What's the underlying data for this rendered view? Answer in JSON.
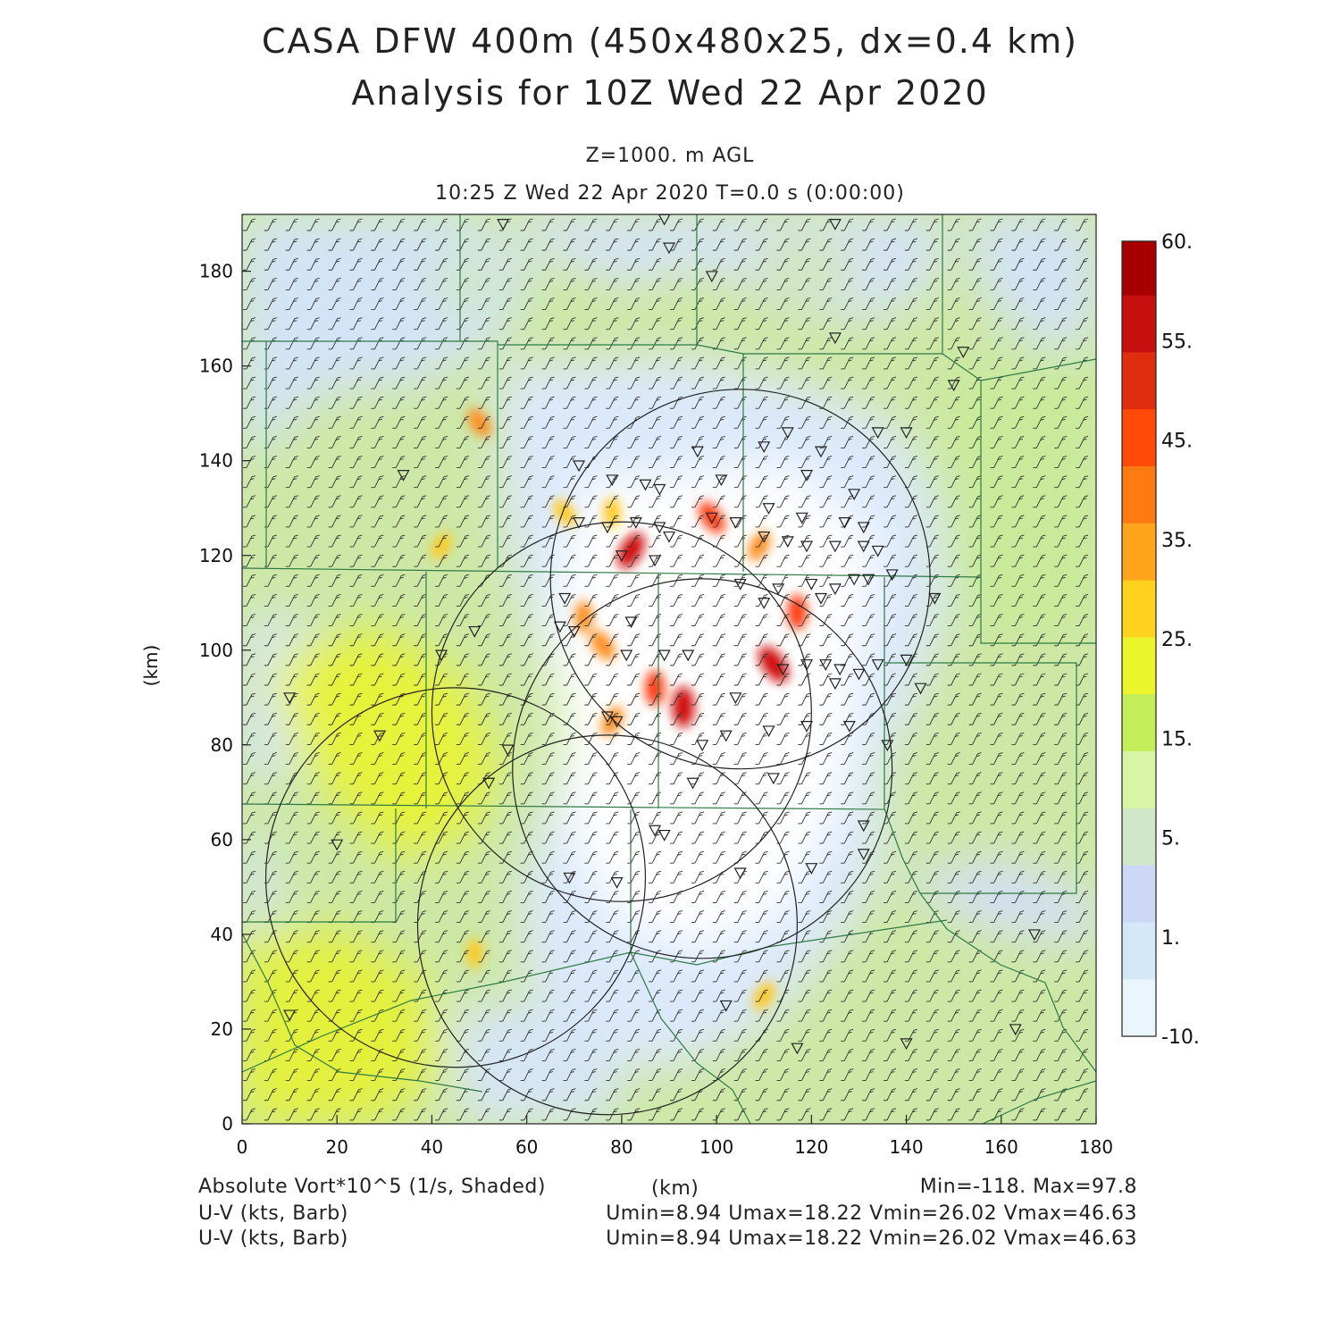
{
  "header": {
    "title_line1": "CASA DFW 400m (450x480x25, dx=0.4 km)",
    "title_line2": "Analysis for 10Z Wed 22 Apr 2020",
    "level": "Z=1000. m AGL",
    "time": "10:25 Z Wed 22 Apr 2020    T=0.0 s (0:00:00)"
  },
  "axes": {
    "xlabel": "(km)",
    "ylabel": "(km)",
    "xlim": [
      0,
      180
    ],
    "ylim": [
      0,
      192
    ],
    "x_ticks": [
      "0",
      "20",
      "40",
      "60",
      "80",
      "100",
      "120",
      "140",
      "160",
      "180"
    ],
    "y_ticks": [
      "0",
      "20",
      "40",
      "60",
      "80",
      "100",
      "120",
      "140",
      "160",
      "180"
    ]
  },
  "colorbar": {
    "labels": [
      "60.",
      "55.",
      "45.",
      "35.",
      "25.",
      "15.",
      "5.",
      "1.",
      "-10."
    ],
    "colors": [
      "#a80000",
      "#c80f0f",
      "#e02d10",
      "#ff4a0a",
      "#ff7a12",
      "#ffa51c",
      "#ffd21e",
      "#ecf52a",
      "#c2ee5a",
      "#d8f5a6",
      "#cfe9c8",
      "#cdd8f6",
      "#d4e8f8",
      "#e9f6fc"
    ]
  },
  "footer": {
    "field_label": "Absolute Vort*10^5 (1/s, Shaded)",
    "unit_label": "(km)",
    "minmax": "Min=-118. Max=97.8",
    "barb1_label": "U-V (kts, Barb)",
    "barb1_stats": "Umin=8.94 Umax=18.22 Vmin=26.02 Vmax=46.63",
    "barb2_label": "U-V (kts, Barb)",
    "barb2_stats": "Umin=8.94 Umax=18.22 Vmin=26.02 Vmax=46.63"
  },
  "map_data": {
    "field": "absolute vorticity x10^5 (1/s)",
    "range": [
      -118,
      97.8
    ],
    "radar_rings": [
      {
        "x": 77,
        "y": 42,
        "r": 40
      },
      {
        "x": 97,
        "y": 75,
        "r": 40
      },
      {
        "x": 105,
        "y": 115,
        "r": 40
      },
      {
        "x": 80,
        "y": 87,
        "r": 40
      },
      {
        "x": 45,
        "y": 52,
        "r": 40
      }
    ],
    "maxima": [
      {
        "x": 93,
        "y": 88,
        "value": 60
      },
      {
        "x": 112,
        "y": 97,
        "value": 60
      },
      {
        "x": 82,
        "y": 121,
        "value": 55
      },
      {
        "x": 117,
        "y": 108,
        "value": 45
      },
      {
        "x": 99,
        "y": 128,
        "value": 45
      },
      {
        "x": 78,
        "y": 85,
        "value": 35
      },
      {
        "x": 87,
        "y": 92,
        "value": 45
      },
      {
        "x": 50,
        "y": 148,
        "value": 35
      },
      {
        "x": 110,
        "y": 27,
        "value": 30
      },
      {
        "x": 72,
        "y": 107,
        "value": 35
      },
      {
        "x": 76,
        "y": 101,
        "value": 40
      },
      {
        "x": 109,
        "y": 122,
        "value": 35
      },
      {
        "x": 78,
        "y": 129,
        "value": 30
      },
      {
        "x": 68,
        "y": 129,
        "value": 30
      },
      {
        "x": 42,
        "y": 122,
        "value": 25
      },
      {
        "x": 49,
        "y": 36,
        "value": 25
      }
    ],
    "stations": [
      [
        55,
        190
      ],
      [
        89,
        191
      ],
      [
        125,
        190
      ],
      [
        90,
        185
      ],
      [
        99,
        179
      ],
      [
        125,
        166
      ],
      [
        152,
        163
      ],
      [
        150,
        156
      ],
      [
        34,
        137
      ],
      [
        71,
        139
      ],
      [
        96,
        142
      ],
      [
        110,
        143
      ],
      [
        115,
        146
      ],
      [
        122,
        142
      ],
      [
        134,
        146
      ],
      [
        140,
        146
      ],
      [
        85,
        135
      ],
      [
        88,
        134
      ],
      [
        101,
        136
      ],
      [
        119,
        137
      ],
      [
        129,
        133
      ],
      [
        78,
        136
      ],
      [
        71,
        127
      ],
      [
        77,
        126
      ],
      [
        83,
        127
      ],
      [
        88,
        126
      ],
      [
        90,
        124
      ],
      [
        99,
        128
      ],
      [
        104,
        127
      ],
      [
        111,
        130
      ],
      [
        118,
        128
      ],
      [
        127,
        127
      ],
      [
        131,
        126
      ],
      [
        110,
        124
      ],
      [
        115,
        123
      ],
      [
        119,
        122
      ],
      [
        125,
        122
      ],
      [
        131,
        122
      ],
      [
        134,
        121
      ],
      [
        80,
        120
      ],
      [
        87,
        119
      ],
      [
        105,
        114
      ],
      [
        113,
        113
      ],
      [
        120,
        114
      ],
      [
        125,
        113
      ],
      [
        129,
        115
      ],
      [
        132,
        115
      ],
      [
        137,
        116
      ],
      [
        146,
        111
      ],
      [
        68,
        111
      ],
      [
        67,
        105
      ],
      [
        70,
        104
      ],
      [
        82,
        106
      ],
      [
        110,
        110
      ],
      [
        122,
        111
      ],
      [
        49,
        104
      ],
      [
        42,
        99
      ],
      [
        81,
        99
      ],
      [
        89,
        99
      ],
      [
        94,
        99
      ],
      [
        114,
        96
      ],
      [
        119,
        97
      ],
      [
        123,
        97
      ],
      [
        126,
        96
      ],
      [
        130,
        95
      ],
      [
        134,
        97
      ],
      [
        140,
        98
      ],
      [
        143,
        92
      ],
      [
        125,
        93
      ],
      [
        10,
        90
      ],
      [
        29,
        82
      ],
      [
        77,
        86
      ],
      [
        79,
        85
      ],
      [
        97,
        80
      ],
      [
        102,
        82
      ],
      [
        111,
        83
      ],
      [
        119,
        84
      ],
      [
        128,
        84
      ],
      [
        136,
        80
      ],
      [
        104,
        90
      ],
      [
        56,
        79
      ],
      [
        52,
        72
      ],
      [
        95,
        72
      ],
      [
        112,
        73
      ],
      [
        87,
        62
      ],
      [
        89,
        61
      ],
      [
        131,
        57
      ],
      [
        20,
        59
      ],
      [
        69,
        52
      ],
      [
        79,
        51
      ],
      [
        105,
        53
      ],
      [
        120,
        54
      ],
      [
        131,
        63
      ],
      [
        167,
        40
      ],
      [
        102,
        25
      ],
      [
        10,
        23
      ],
      [
        117,
        16
      ],
      [
        140,
        17
      ],
      [
        163,
        20
      ]
    ]
  }
}
